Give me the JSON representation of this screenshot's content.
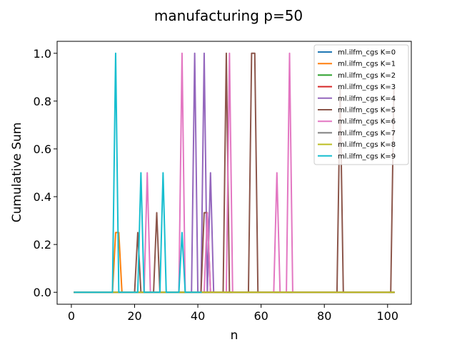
{
  "chart_data": {
    "type": "line",
    "title": "manufacturing p=50",
    "xlabel": "n",
    "ylabel": "Cumulative Sum",
    "xlim": [
      -4.5,
      107.5
    ],
    "ylim": [
      -0.05,
      1.05
    ],
    "xticks": [
      0,
      20,
      40,
      60,
      80,
      100
    ],
    "yticks": [
      0.0,
      0.2,
      0.4,
      0.6,
      0.8,
      1.0
    ],
    "xtick_labels": [
      "0",
      "20",
      "40",
      "60",
      "80",
      "100"
    ],
    "ytick_labels": [
      "0.0",
      "0.2",
      "0.4",
      "0.6",
      "0.8",
      "1.0"
    ],
    "grid": false,
    "legend_position": "top-right",
    "series": [
      {
        "name": "ml.ilfm_cgs K=0",
        "color": "#1f77b4",
        "points": [
          [
            1,
            0
          ],
          [
            102,
            0
          ]
        ]
      },
      {
        "name": "ml.ilfm_cgs K=1",
        "color": "#ff7f0e",
        "points": [
          [
            1,
            0
          ],
          [
            13,
            0
          ],
          [
            14,
            0.25
          ],
          [
            15,
            0.25
          ],
          [
            16,
            0
          ],
          [
            102,
            0
          ]
        ]
      },
      {
        "name": "ml.ilfm_cgs K=2",
        "color": "#2ca02c",
        "points": [
          [
            1,
            0
          ],
          [
            102,
            0
          ]
        ]
      },
      {
        "name": "ml.ilfm_cgs K=3",
        "color": "#d62728",
        "points": [
          [
            1,
            0
          ],
          [
            102,
            0
          ]
        ]
      },
      {
        "name": "ml.ilfm_cgs K=4",
        "color": "#9467bd",
        "points": [
          [
            38,
            0
          ],
          [
            39,
            1.0
          ],
          [
            40,
            0
          ],
          [
            41,
            0
          ],
          [
            42,
            1.0
          ],
          [
            43,
            0
          ],
          [
            44,
            0.5
          ],
          [
            45,
            0
          ]
        ]
      },
      {
        "name": "ml.ilfm_cgs K=5",
        "color": "#8c564b",
        "points": [
          [
            1,
            0
          ],
          [
            20,
            0
          ],
          [
            21,
            0.25
          ],
          [
            22,
            0
          ],
          [
            26,
            0
          ],
          [
            27,
            0.333
          ],
          [
            28,
            0
          ],
          [
            41,
            0
          ],
          [
            42,
            0.333
          ],
          [
            43,
            0.333
          ],
          [
            44,
            0
          ],
          [
            48,
            0
          ],
          [
            49,
            1.0
          ],
          [
            50,
            0
          ],
          [
            56,
            0
          ],
          [
            57,
            1.0
          ],
          [
            58,
            1.0
          ],
          [
            59,
            0
          ],
          [
            84,
            0
          ],
          [
            85,
            0.85
          ],
          [
            86,
            0
          ],
          [
            101,
            0
          ],
          [
            102,
            0.85
          ]
        ]
      },
      {
        "name": "ml.ilfm_cgs K=6",
        "color": "#e377c2",
        "points": [
          [
            1,
            0
          ],
          [
            23,
            0
          ],
          [
            24,
            0.5
          ],
          [
            25,
            0
          ],
          [
            34,
            0
          ],
          [
            35,
            1.0
          ],
          [
            36,
            0
          ],
          [
            42,
            0
          ],
          [
            43,
            0.333
          ],
          [
            44,
            0
          ],
          [
            49,
            0
          ],
          [
            50,
            1.0
          ],
          [
            51,
            0
          ],
          [
            64,
            0
          ],
          [
            65,
            0.5
          ],
          [
            66,
            0
          ],
          [
            68,
            0
          ],
          [
            69,
            1.0
          ],
          [
            70,
            0
          ],
          [
            100,
            0
          ]
        ]
      },
      {
        "name": "ml.ilfm_cgs K=7",
        "color": "#7f7f7f",
        "points": [
          [
            1,
            0
          ],
          [
            102,
            0
          ]
        ]
      },
      {
        "name": "ml.ilfm_cgs K=8",
        "color": "#bcbd22",
        "points": [
          [
            1,
            0
          ],
          [
            102,
            0
          ]
        ]
      },
      {
        "name": "ml.ilfm_cgs K=9",
        "color": "#17becf",
        "points": [
          [
            1,
            0
          ],
          [
            13,
            0
          ],
          [
            14,
            1.0
          ],
          [
            15,
            0
          ],
          [
            21,
            0
          ],
          [
            22,
            0.5
          ],
          [
            23,
            0
          ],
          [
            28,
            0
          ],
          [
            29,
            0.5
          ],
          [
            30,
            0
          ],
          [
            34,
            0
          ],
          [
            35,
            0.25
          ],
          [
            36,
            0
          ],
          [
            41,
            0
          ]
        ]
      }
    ]
  }
}
